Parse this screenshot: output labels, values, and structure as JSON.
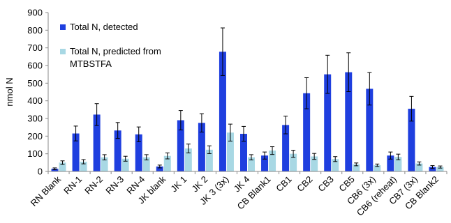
{
  "chart_data": {
    "type": "bar",
    "title": "",
    "xlabel": "",
    "ylabel": "nmol N",
    "ylim": [
      0,
      900
    ],
    "yticks": [
      0,
      100,
      200,
      300,
      400,
      500,
      600,
      700,
      800,
      900
    ],
    "grid": false,
    "legend_position": "top-left",
    "categories": [
      "RN Blank",
      "RN-1",
      "RN-2",
      "RN-3",
      "RN-4",
      "JK blank",
      "JK 1",
      "JK 2",
      "JK 3 (3x)",
      "JK 4",
      "CB Blank1",
      "CB1",
      "CB2",
      "CB3",
      "CB5",
      "CB6 (3x)",
      "CB6 (reheat)",
      "CB7 (3x)",
      "CB Blank2"
    ],
    "series": [
      {
        "name": "Total N, detected",
        "color": "#1f3fdf",
        "values": [
          15,
          215,
          322,
          232,
          210,
          28,
          290,
          275,
          678,
          213,
          90,
          263,
          443,
          550,
          562,
          468,
          90,
          355,
          25
        ],
        "errors": [
          5,
          42,
          62,
          45,
          42,
          8,
          55,
          52,
          135,
          42,
          20,
          50,
          88,
          108,
          110,
          92,
          20,
          70,
          8
        ]
      },
      {
        "name": "Total N, predicted from MTBSTFA",
        "color": "#a8d8e4",
        "values": [
          50,
          55,
          80,
          72,
          80,
          88,
          130,
          123,
          220,
          80,
          118,
          100,
          85,
          70,
          40,
          35,
          82,
          45,
          25
        ],
        "errors": [
          10,
          12,
          15,
          14,
          15,
          17,
          25,
          22,
          48,
          15,
          22,
          20,
          17,
          14,
          8,
          7,
          16,
          9,
          6
        ]
      }
    ]
  }
}
